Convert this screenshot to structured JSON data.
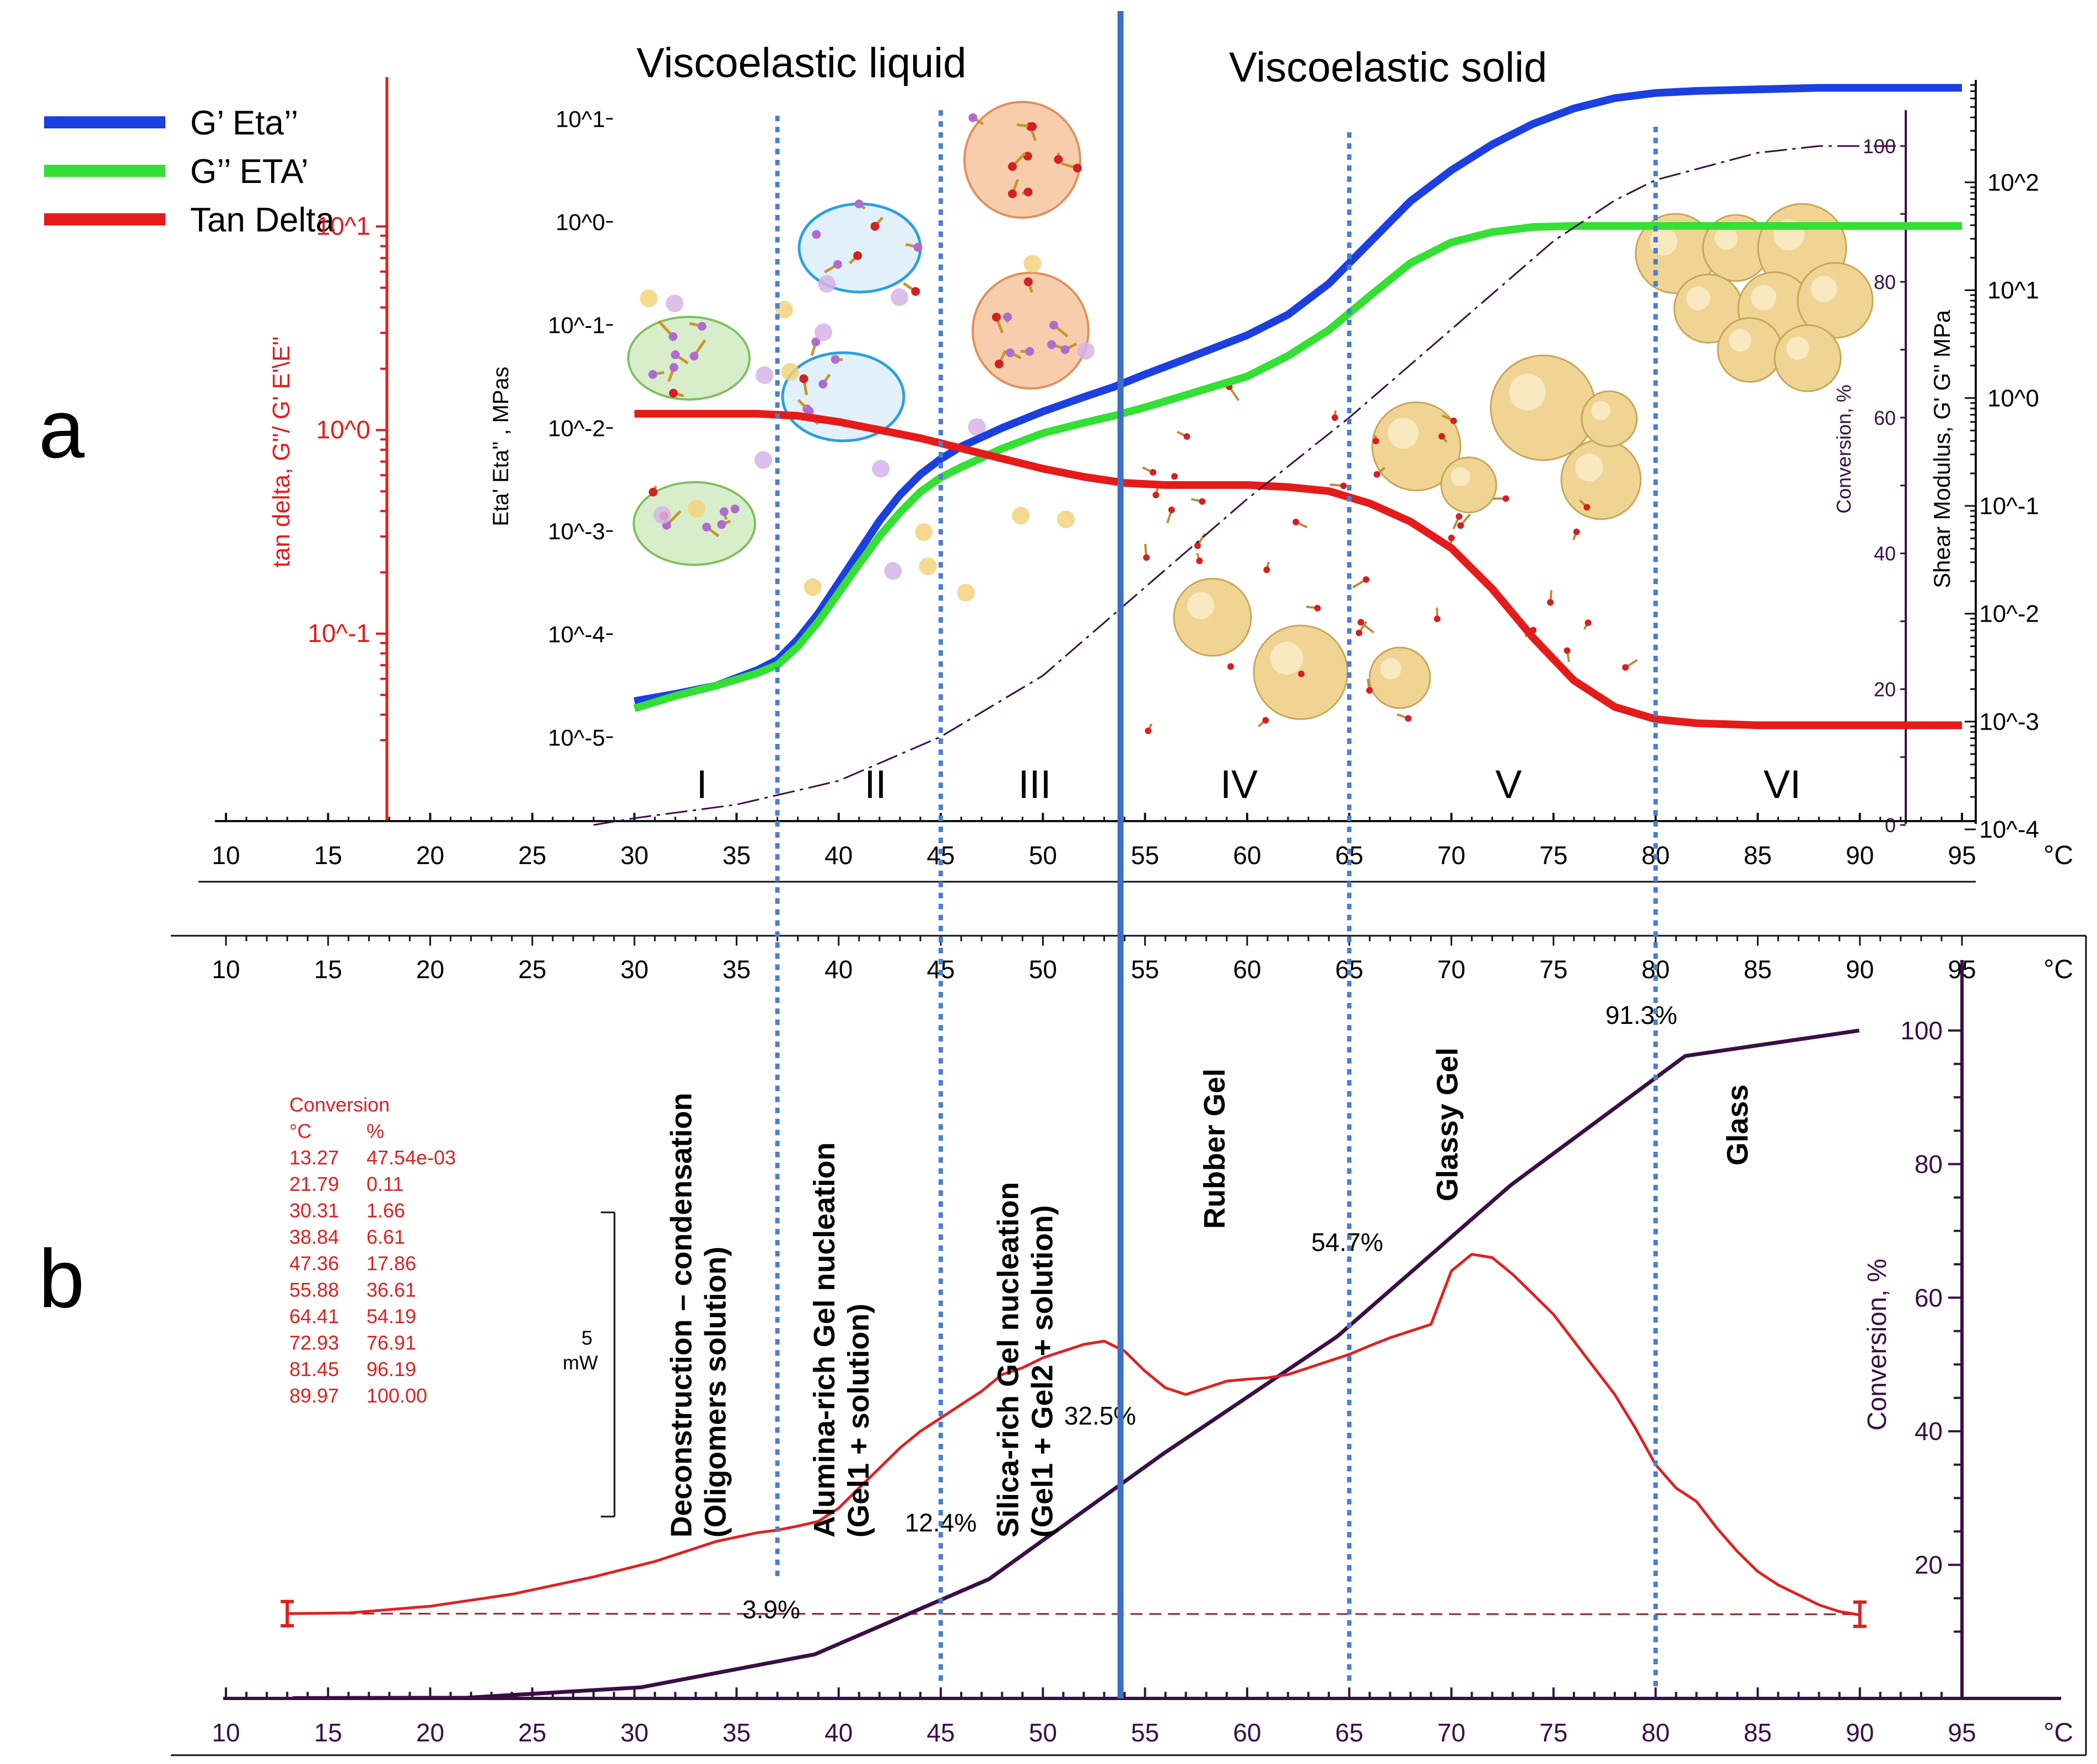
{
  "figure": {
    "panel_a_label": "a",
    "panel_b_label": "b",
    "region_liquid": "Viscoelastic liquid",
    "region_solid": "Viscoelastic solid"
  },
  "colors": {
    "g_prime": "#1b3fe0",
    "g_double_prime": "#33e033",
    "tan_delta": "#e51b1b",
    "conversion": "#3a0f45",
    "dsc": "#e02020",
    "stage_lines": "#4a7fd0",
    "main_line": "#3e6fc4",
    "red_axis": "#e51b1b",
    "purple_axis": "#3a0f45"
  },
  "chart_data": [
    {
      "type": "line",
      "panel": "a",
      "legend": [
        {
          "label": "G’  Eta’’",
          "color": "#1b3fe0"
        },
        {
          "label": "G’’ ETA’",
          "color": "#33e033"
        },
        {
          "label": "Tan Delta",
          "color": "#e51b1b"
        }
      ],
      "x_ticks": [
        "10",
        "15",
        "20",
        "25",
        "30",
        "35",
        "40",
        "45",
        "50",
        "55",
        "60",
        "65",
        "70",
        "75",
        "80",
        "85",
        "90",
        "95"
      ],
      "x_unit": "°C",
      "xlim": [
        10,
        95
      ],
      "y_left_label": "tan delta, G''/ G' E'\\E''",
      "y_left_ticks": [
        "10^1",
        "10^0",
        "10^-1"
      ],
      "y_left_ticks_value": [
        1,
        0,
        -1
      ],
      "y_left_lim": [
        -1.65,
        1.3
      ],
      "y_mid_label": "Eta' Eta'' , MPas",
      "y_mid_ticks": [
        "10^1",
        "10^0",
        "10^-1",
        "10^-2",
        "10^-3",
        "10^-4",
        "10^-5"
      ],
      "y_mid_ticks_value": [
        1,
        0,
        -1,
        -2,
        -3,
        -4,
        -5
      ],
      "y_mid_lim": [
        -5.6,
        1.35
      ],
      "y_conv_label": "Conversion, %",
      "y_conv_ticks": [
        "100",
        "80",
        "60",
        "40",
        "20",
        "0"
      ],
      "y_conv_ticks_value": [
        100,
        80,
        60,
        40,
        20,
        0
      ],
      "y_right_label": "Shear Modulus, G' G'' MPa",
      "y_right_ticks": [
        "10^2",
        "10^1",
        "10^0",
        "10^-1",
        "10^-2",
        "10^-3",
        "10^-4"
      ],
      "y_right_ticks_value": [
        2,
        1,
        0,
        -1,
        -2,
        -3,
        -4
      ],
      "y_right_lim": [
        -4.0,
        2.95
      ],
      "stage_labels": [
        "I",
        "II",
        "III",
        "IV",
        "V",
        "VI"
      ],
      "stage_label_x": [
        33.3,
        41.8,
        49.6,
        59.6,
        72.8,
        86.2
      ],
      "series": [
        {
          "name": "G’  Eta’’",
          "axis": "mid",
          "x": [
            30,
            32,
            34,
            36,
            37,
            38,
            39,
            40,
            41,
            42,
            43,
            44,
            45,
            46,
            48,
            50,
            52,
            53.5,
            55,
            57,
            60,
            62,
            64,
            66,
            68,
            70,
            72,
            74,
            76,
            78,
            80,
            82,
            84,
            86,
            88,
            90,
            92,
            95
          ],
          "y": [
            -4.65,
            -4.58,
            -4.5,
            -4.35,
            -4.25,
            -4.05,
            -3.8,
            -3.5,
            -3.2,
            -2.9,
            -2.65,
            -2.45,
            -2.3,
            -2.18,
            -2.0,
            -1.84,
            -1.7,
            -1.6,
            -1.48,
            -1.33,
            -1.1,
            -0.9,
            -0.6,
            -0.2,
            0.2,
            0.5,
            0.75,
            0.95,
            1.1,
            1.2,
            1.25,
            1.27,
            1.28,
            1.29,
            1.3,
            1.3,
            1.3,
            1.3
          ]
        },
        {
          "name": "G’’ ETA’",
          "axis": "mid",
          "x": [
            30,
            32,
            34,
            36,
            37,
            38,
            39,
            40,
            41,
            42,
            43,
            44,
            45,
            46,
            48,
            50,
            52,
            53.5,
            55,
            57,
            60,
            62,
            64,
            66,
            68,
            70,
            72,
            74,
            76,
            78,
            80,
            82,
            85,
            90,
            95
          ],
          "y": [
            -4.72,
            -4.6,
            -4.5,
            -4.38,
            -4.3,
            -4.12,
            -3.88,
            -3.6,
            -3.32,
            -3.05,
            -2.82,
            -2.62,
            -2.48,
            -2.38,
            -2.2,
            -2.05,
            -1.95,
            -1.88,
            -1.8,
            -1.68,
            -1.5,
            -1.3,
            -1.05,
            -0.72,
            -0.4,
            -0.2,
            -0.1,
            -0.05,
            -0.04,
            -0.04,
            -0.04,
            -0.04,
            -0.04,
            -0.04,
            -0.04
          ]
        },
        {
          "name": "Tan Delta",
          "axis": "left",
          "x": [
            30,
            33,
            36,
            38,
            40,
            42,
            44,
            46,
            48,
            50,
            52,
            54,
            56,
            58,
            60,
            62,
            64,
            66,
            68,
            70,
            72,
            74,
            76,
            78,
            80,
            82,
            85,
            90,
            95
          ],
          "y": [
            0.08,
            0.08,
            0.08,
            0.07,
            0.04,
            0.0,
            -0.04,
            -0.09,
            -0.14,
            -0.19,
            -0.23,
            -0.26,
            -0.27,
            -0.27,
            -0.27,
            -0.28,
            -0.3,
            -0.36,
            -0.45,
            -0.58,
            -0.78,
            -1.02,
            -1.23,
            -1.36,
            -1.42,
            -1.44,
            -1.45,
            -1.45,
            -1.45
          ]
        },
        {
          "name": "Conversion",
          "axis": "conv",
          "style": "dashed",
          "x": [
            28,
            30,
            35,
            40,
            45,
            50,
            55,
            60,
            65,
            70,
            75,
            78,
            80,
            85,
            88,
            90,
            92
          ],
          "y": [
            0,
            1,
            3,
            6.5,
            13,
            22,
            35,
            48,
            60,
            73,
            86,
            92,
            95,
            99,
            100,
            100,
            100
          ]
        }
      ]
    },
    {
      "type": "line",
      "panel": "b",
      "x_ticks": [
        "10",
        "15",
        "20",
        "25",
        "30",
        "35",
        "40",
        "45",
        "50",
        "55",
        "60",
        "65",
        "70",
        "75",
        "80",
        "85",
        "90",
        "95"
      ],
      "x_unit": "°C",
      "xlim": [
        10,
        95
      ],
      "y_right_label": "Conversion, %",
      "y_right_ticks": [
        "100",
        "80",
        "60",
        "40",
        "20"
      ],
      "y_right_ticks_value": [
        100,
        80,
        60,
        40,
        20
      ],
      "ylim": [
        -0.5,
        100.5
      ],
      "scale_bar_label_value": "5",
      "scale_bar_label_unit": "mW",
      "stage_descriptions": [
        {
          "line1": "Deconstruction – condensation",
          "line2": "(Oligomers solution)",
          "x": 33.6
        },
        {
          "line1": "Alumina-rich Gel nucleation",
          "line2": "(Gel1 + solution)",
          "x": 40.6
        },
        {
          "line1": "Silica-rich Gel nucleation",
          "line2": "(Gel1 + Gel2 + solution)",
          "x": 49.6
        },
        {
          "line1": "Rubber Gel",
          "line2": "",
          "x": 58.9
        },
        {
          "line1": "Glassy Gel",
          "line2": "",
          "x": 70.3
        },
        {
          "line1": "Glass",
          "line2": "",
          "x": 84.5
        }
      ],
      "conversion_markers": [
        {
          "label": "3.9%",
          "x": 36.7,
          "y": 12
        },
        {
          "label": "12.4%",
          "x": 45.0,
          "y": 25
        },
        {
          "label": "32.5%",
          "x": 52.8,
          "y": 41
        },
        {
          "label": "54.7%",
          "x": 64.9,
          "y": 67
        },
        {
          "label": "91.3%",
          "x": 79.3,
          "y": 101
        }
      ],
      "conversion_table": {
        "title": "Conversion",
        "headers": [
          "°C",
          "%"
        ],
        "rows": [
          [
            "13.27",
            "47.54e-03"
          ],
          [
            "21.79",
            "0.11"
          ],
          [
            "30.31",
            "1.66"
          ],
          [
            "38.84",
            "6.61"
          ],
          [
            "47.36",
            "17.86"
          ],
          [
            "55.88",
            "36.61"
          ],
          [
            "64.41",
            "54.19"
          ],
          [
            "72.93",
            "76.91"
          ],
          [
            "81.45",
            "96.19"
          ],
          [
            "89.97",
            "100.00"
          ]
        ]
      },
      "series": [
        {
          "name": "Conversion",
          "style": "solid",
          "x": [
            13.27,
            21.79,
            30.31,
            38.84,
            47.36,
            55.88,
            64.41,
            72.93,
            81.45,
            89.97
          ],
          "y": [
            0.05,
            0.11,
            1.66,
            6.61,
            17.86,
            36.61,
            54.19,
            76.91,
            96.19,
            100.0
          ]
        },
        {
          "name": "DSC heat flow",
          "style": "solid",
          "x": [
            13,
            16,
            20,
            24,
            28,
            31,
            34,
            36,
            37,
            38,
            39,
            40,
            41,
            42,
            43,
            44,
            45,
            46,
            47,
            48,
            49,
            50,
            51,
            52,
            53,
            54,
            55,
            56,
            57,
            58,
            59,
            60,
            61,
            62,
            63,
            64,
            65,
            66,
            67,
            68,
            69,
            70,
            71,
            72,
            73,
            74,
            75,
            76,
            77,
            78,
            79,
            80,
            81,
            82,
            83,
            84,
            85,
            86,
            87,
            88,
            89,
            90
          ],
          "y": [
            12.7,
            12.8,
            13.8,
            15.6,
            18.2,
            20.5,
            23.5,
            24.8,
            25.2,
            25.8,
            26.5,
            28.5,
            31.5,
            34.5,
            37.5,
            40,
            42,
            44,
            46,
            48.5,
            49.5,
            51,
            52,
            53,
            53.5,
            52,
            49,
            46.5,
            45.5,
            46.5,
            47.5,
            47.8,
            48,
            48.5,
            49.5,
            50.5,
            51.5,
            52.8,
            54,
            55,
            56,
            64,
            66.5,
            66,
            63.5,
            60.5,
            57.5,
            53.5,
            49.5,
            45.5,
            40.5,
            35,
            31.5,
            29.5,
            25.5,
            22,
            19,
            17,
            15.5,
            14,
            13,
            12.5
          ]
        },
        {
          "name": "DSC baseline",
          "style": "dashed",
          "x": [
            13,
            90
          ],
          "y": [
            12.7,
            12.6
          ]
        }
      ]
    }
  ]
}
